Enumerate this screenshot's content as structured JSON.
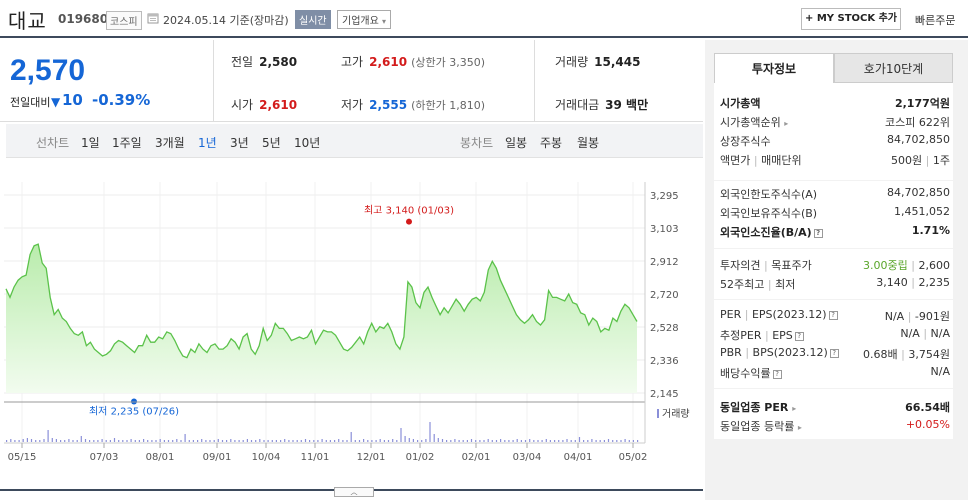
{
  "header": {
    "stock_name": "대교",
    "stock_code": "019680",
    "market": "코스피",
    "date": "2024.05.14",
    "date_suffix": "기준(장마감)",
    "realtime_label": "실시간",
    "corp_info_label": "기업개요",
    "mystock_label": "+ MY STOCK 추가",
    "quick_order_label": "빠른주문"
  },
  "price": {
    "current": "2,570",
    "change_label": "전일대비",
    "change_value": "10",
    "change_pct": "-0.39%",
    "prev_close_label": "전일",
    "prev_close": "2,580",
    "high_label": "고가",
    "high": "2,610",
    "upper_limit": "(상한가 3,350)",
    "volume_label": "거래량",
    "volume": "15,445",
    "open_label": "시가",
    "open": "2,610",
    "low_label": "저가",
    "low": "2,555",
    "lower_limit": "(하한가 1,810)",
    "amount_label": "거래대금",
    "amount": "39 백만"
  },
  "periods": {
    "line_label": "선차트",
    "line_items": [
      "1일",
      "1주일",
      "3개월",
      "1년",
      "3년",
      "5년",
      "10년"
    ],
    "active": "1년",
    "candle_label": "봉차트",
    "candle_items": [
      "일봉",
      "주봉",
      "월봉"
    ]
  },
  "chart_data": {
    "type": "area",
    "y_ticks": [
      "3,295",
      "3,103",
      "2,912",
      "2,720",
      "2,528",
      "2,336",
      "2,145"
    ],
    "ylim": [
      2145,
      3295
    ],
    "x_ticks": [
      "05/15",
      "07/03",
      "08/01",
      "09/01",
      "10/04",
      "11/01",
      "12/01",
      "01/02",
      "02/01",
      "03/04",
      "04/01",
      "05/02"
    ],
    "max_label": "최고 3,140 (01/03)",
    "min_label": "최저 2,235 (07/26)",
    "max": {
      "date": "01/03",
      "value": 3140
    },
    "min": {
      "date": "07/26",
      "value": 2235
    },
    "volume_label": "거래량",
    "series": [
      {
        "values": [
          2750,
          2700,
          2760,
          2800,
          2820,
          2830,
          2950,
          3000,
          3010,
          2900,
          2870,
          2700,
          2600,
          2630,
          2580,
          2560,
          2520,
          2490,
          2480,
          2500,
          2420,
          2440,
          2400,
          2380,
          2360,
          2370,
          2390,
          2430,
          2450,
          2440,
          2420,
          2400,
          2380,
          2420,
          2420,
          2480,
          2440,
          2440,
          2470,
          2460,
          2500,
          2490,
          2450,
          2400,
          2360,
          2350,
          2400,
          2380,
          2430,
          2400,
          2380,
          2420,
          2430,
          2400,
          2400,
          2420,
          2460,
          2440,
          2400,
          2470,
          2490,
          2400,
          2370,
          2420,
          2520,
          2450,
          2480,
          2550,
          2520,
          2520,
          2490,
          2450,
          2460,
          2470,
          2460,
          2470,
          2510,
          2430,
          2470,
          2510,
          2500,
          2500,
          2480,
          2440,
          2400,
          2390,
          2410,
          2440,
          2470,
          2430,
          2500,
          2550,
          2500,
          2530,
          2520,
          2550,
          2500,
          2430,
          2400,
          2470,
          2790,
          2760,
          2670,
          2640,
          2730,
          2760,
          2700,
          2650,
          2600,
          2640,
          2610,
          2650,
          2690,
          2660,
          2620,
          2660,
          2690,
          2700,
          2680,
          2730,
          2860,
          2910,
          2870,
          2800,
          2750,
          2700,
          2650,
          2600,
          2570,
          2550,
          2570,
          2600,
          2560,
          2540,
          2570,
          2740,
          2700,
          2700,
          2690,
          2680,
          2720,
          2670,
          2660,
          2610,
          2600,
          2540,
          2580,
          2560,
          2500,
          2520,
          2510,
          2580,
          2560,
          2620,
          2660,
          2640,
          2600,
          2560
        ]
      }
    ]
  },
  "right_panel": {
    "tabs": [
      "투자정보",
      "호가10단계"
    ],
    "market_cap_label": "시가총액",
    "market_cap": "2,177억원",
    "market_cap_rank_label": "시가총액순위",
    "market_cap_rank": "코스피 622위",
    "shares_label": "상장주식수",
    "shares": "84,702,850",
    "par_label": "액면가",
    "unit_label": "매매단위",
    "par": "500원",
    "unit": "1주",
    "foreign_limit_label": "외국인한도주식수(A)",
    "foreign_limit": "84,702,850",
    "foreign_hold_label": "외국인보유주식수(B)",
    "foreign_hold": "1,451,052",
    "foreign_ratio_label": "외국인소진율(B/A)",
    "foreign_ratio": "1.71%",
    "opinion_label": "투자의견",
    "target_label": "목표주가",
    "opinion": "3.00중립",
    "target": "2,600",
    "high52_label": "52주최고",
    "low52_label": "최저",
    "high52": "3,140",
    "low52": "2,235",
    "per_label": "PER",
    "eps_label": "EPS(2023.12)",
    "per": "N/A",
    "eps": "-901원",
    "est_per_label": "추정PER",
    "est_eps_label": "EPS",
    "est_per": "N/A",
    "est_eps": "N/A",
    "pbr_label": "PBR",
    "bps_label": "BPS(2023.12)",
    "pbr": "0.68배",
    "bps": "3,754원",
    "dividend_label": "배당수익률",
    "dividend": "N/A",
    "industry_per_label": "동일업종 PER",
    "industry_per": "66.54배",
    "industry_chg_label": "동일업종 등락률",
    "industry_chg": "+0.05%"
  }
}
